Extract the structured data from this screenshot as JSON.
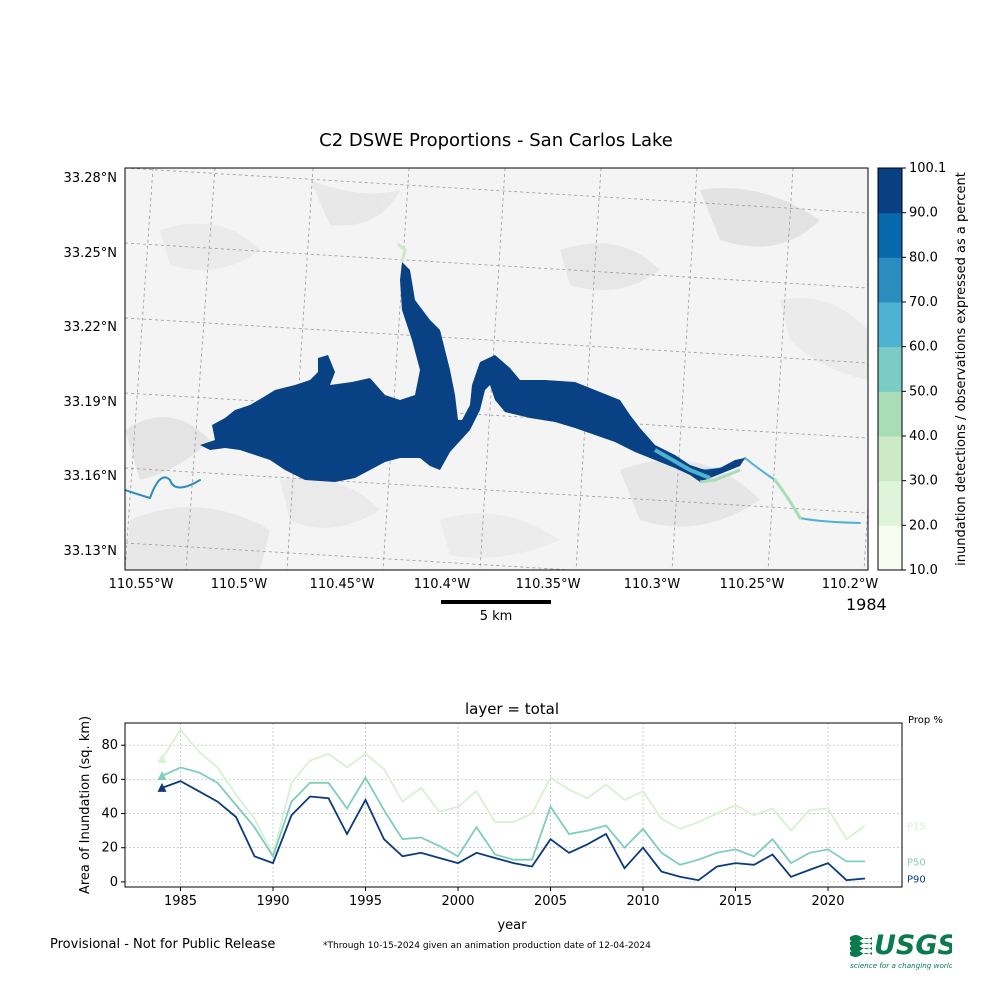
{
  "map": {
    "title": "C2 DSWE Proportions - San Carlos Lake",
    "year": "1984",
    "lat_ticks": [
      "33.28°N",
      "33.25°N",
      "33.22°N",
      "33.19°N",
      "33.16°N",
      "33.13°N"
    ],
    "lon_ticks": [
      "110.55°W",
      "110.5°W",
      "110.45°W",
      "110.4°W",
      "110.35°W",
      "110.3°W",
      "110.25°W",
      "110.2°W"
    ],
    "scalebar_label": "5 km",
    "water_color": "#084184"
  },
  "colorbar": {
    "label": "inundation detections / observations expressed as a percent",
    "ticks": [
      "100.1",
      "90.0",
      "80.0",
      "70.0",
      "60.0",
      "50.0",
      "40.0",
      "30.0",
      "20.0",
      "10.0"
    ],
    "colors": [
      "#f7fcf0",
      "#e0f3db",
      "#ccebc5",
      "#a8ddb5",
      "#7bccc4",
      "#4eb3d3",
      "#2b8cbe",
      "#0868ac",
      "#084081"
    ]
  },
  "chart_data": {
    "type": "line",
    "title": "layer = total",
    "xlabel": "year",
    "ylabel": "Area of Inundation (sq. km)",
    "xlim": [
      1982,
      2024
    ],
    "ylim": [
      -3,
      93
    ],
    "xticks": [
      1985,
      1990,
      1995,
      2000,
      2005,
      2010,
      2015,
      2020
    ],
    "yticks": [
      0,
      20,
      40,
      60,
      80
    ],
    "grid": true,
    "legend_title": "Prop %",
    "marker_year": 1984,
    "x": [
      1984,
      1985,
      1986,
      1987,
      1988,
      1989,
      1990,
      1991,
      1992,
      1993,
      1994,
      1995,
      1996,
      1997,
      1998,
      1999,
      2000,
      2001,
      2002,
      2003,
      2004,
      2005,
      2006,
      2007,
      2008,
      2009,
      2010,
      2011,
      2012,
      2013,
      2014,
      2015,
      2016,
      2017,
      2018,
      2019,
      2020,
      2021,
      2022
    ],
    "series": [
      {
        "name": "P15",
        "color": "#d9f0d3",
        "values": [
          72,
          89,
          76,
          67,
          51,
          37,
          16,
          58,
          71,
          75,
          67,
          75,
          66,
          47,
          55,
          41,
          44,
          53,
          35,
          35,
          40,
          61,
          54,
          49,
          57,
          48,
          53,
          37,
          31,
          35,
          40,
          45,
          39,
          43,
          30,
          42,
          43,
          25,
          33
        ]
      },
      {
        "name": "P50",
        "color": "#7fcdbb",
        "values": [
          62,
          67,
          64,
          58,
          45,
          32,
          15,
          47,
          58,
          58,
          43,
          61,
          42,
          25,
          26,
          21,
          15,
          32,
          16,
          13,
          13,
          44,
          28,
          30,
          33,
          20,
          31,
          17,
          10,
          13,
          17,
          19,
          15,
          25,
          11,
          17,
          19,
          12,
          12
        ]
      },
      {
        "name": "P90",
        "color": "#0c3b7c",
        "values": [
          55,
          59,
          53,
          47,
          38,
          15,
          11,
          39,
          50,
          49,
          28,
          48,
          25,
          15,
          17,
          14,
          11,
          17,
          14,
          11,
          9,
          25,
          17,
          22,
          28,
          8,
          20,
          6,
          3,
          1,
          9,
          11,
          10,
          16,
          3,
          7,
          11,
          1,
          2
        ]
      }
    ]
  },
  "footer": {
    "provisional": "Provisional - Not for Public Release",
    "note": "*Through 10-15-2024 given an animation production date of 12-04-2024"
  },
  "logo": {
    "text": "USGS",
    "tagline": "science for a changing world",
    "color": "#0a7a4f"
  }
}
